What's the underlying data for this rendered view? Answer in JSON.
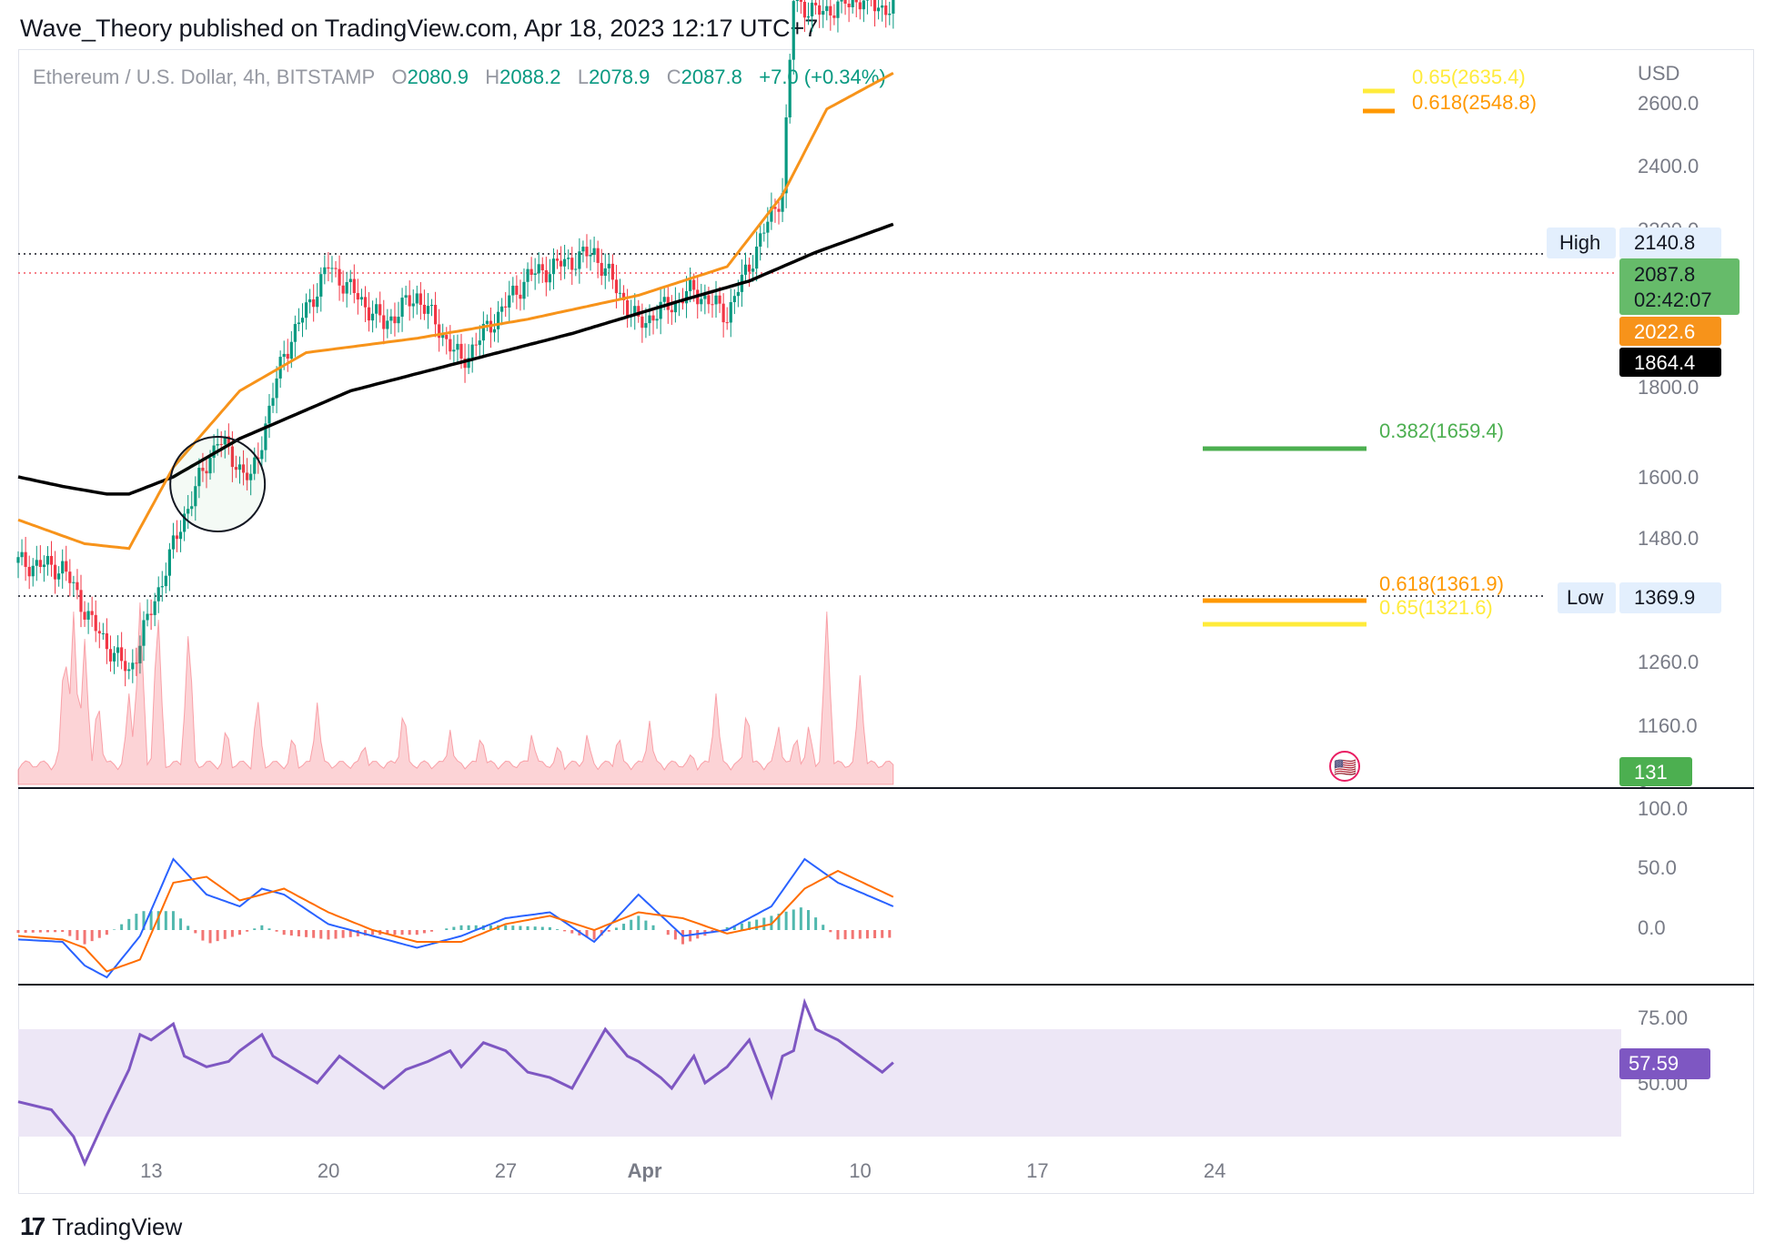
{
  "header": {
    "publisher_line": "Wave_Theory published on TradingView.com, Apr 18, 2023 12:17 UTC+7"
  },
  "legend": {
    "symbol": "Ethereum / U.S. Dollar, 4h, BITSTAMP",
    "open_label": "O",
    "open": "2080.9",
    "high_label": "H",
    "high": "2088.2",
    "low_label": "L",
    "low": "2078.9",
    "close_label": "C",
    "close": "2087.8",
    "change": "+7.0 (+0.34%)"
  },
  "footer": {
    "brand": "TradingView"
  },
  "colors": {
    "up": "#089981",
    "down": "#f23645",
    "ema_fast": "#f7931a",
    "ema_slow": "#000000",
    "fib_yellow": "#ffeb3b",
    "fib_orange": "#ff9800",
    "fib_green": "#4caf50",
    "macd": "#2962ff",
    "signal": "#ff6d00",
    "rsi": "#7e57c2",
    "rsi_band": "#ede7f6"
  },
  "chart_data": {
    "type": "candlestick",
    "price_axis_unit": "USD",
    "price_ticks": [
      "2600.0",
      "2400.0",
      "1800.0",
      "1600.0",
      "1480.0",
      "1260.0",
      "1160.0"
    ],
    "price_ticks_partially_hidden": [
      "2200.0",
      "0"
    ],
    "x_ticks": [
      "13",
      "20",
      "27",
      "Apr",
      "10",
      "17",
      "24"
    ],
    "price_labels": {
      "high_label": "High",
      "high_value": "2140.8",
      "low_label": "Low",
      "low_value": "1369.9",
      "last_price": "2087.8",
      "countdown": "02:42:07",
      "ema_fast_value": "2022.6",
      "ema_slow_value": "1864.4",
      "volume_value": "131"
    },
    "fib_levels": [
      {
        "label": "0.65(2635.4)",
        "ratio": 0.65,
        "price": 2635.4,
        "color": "#ffeb3b"
      },
      {
        "label": "0.618(2548.8)",
        "ratio": 0.618,
        "price": 2548.8,
        "color": "#ff9800"
      },
      {
        "label": "0.382(1659.4)",
        "ratio": 0.382,
        "price": 1659.4,
        "color": "#4caf50"
      },
      {
        "label": "0.618(1361.9)",
        "ratio": 0.618,
        "price": 1361.9,
        "color": "#ff9800"
      },
      {
        "label": "0.65(1321.6)",
        "ratio": 0.65,
        "price": 1321.6,
        "color": "#ffeb3b"
      }
    ],
    "price_anchor_days": [
      0,
      2,
      3.5,
      5,
      6,
      7.5,
      9,
      10.5,
      12,
      14,
      16.5,
      18,
      20,
      23,
      26,
      28,
      30.5,
      32,
      34.5,
      35,
      36,
      38,
      39.5
    ],
    "price_anchors": [
      1510,
      1505,
      1440,
      1395,
      1460,
      1560,
      1640,
      1595,
      1730,
      1820,
      1760,
      1790,
      1720,
      1810,
      1835,
      1760,
      1795,
      1770,
      1900,
      2100,
      2085,
      2100,
      2087.8
    ],
    "ema_fast_days": [
      0,
      3,
      5,
      7,
      10,
      13,
      18,
      23,
      28,
      32,
      34.5,
      36.5,
      39.5
    ],
    "ema_fast": [
      1555,
      1530,
      1525,
      1610,
      1690,
      1730,
      1745,
      1765,
      1790,
      1820,
      1895,
      1985,
      2022.6
    ],
    "ema_slow_days": [
      0,
      2,
      4,
      5,
      7,
      10,
      15,
      20,
      25,
      30,
      33,
      36,
      39.5
    ],
    "ema_slow": [
      1600,
      1590,
      1582,
      1582,
      1600,
      1640,
      1690,
      1720,
      1750,
      1785,
      1805,
      1835,
      1864.4
    ],
    "volume_peaks_days": [
      2.1,
      2.5,
      3.0,
      3.6,
      5.0,
      5.5,
      6.3,
      7.7,
      9.4,
      10.8,
      12.4,
      13.5,
      15.6,
      17.4,
      19.5,
      20.9,
      23.2,
      24.4,
      25.7,
      27.1,
      28.5,
      30.4,
      31.5,
      32.9,
      34.3,
      35.1,
      35.7,
      36.5,
      38.0
    ],
    "volume_peaks": [
      0.8,
      0.95,
      0.8,
      0.5,
      0.5,
      1.0,
      1.0,
      0.9,
      0.35,
      0.5,
      0.3,
      0.45,
      0.25,
      0.45,
      0.3,
      0.3,
      0.3,
      0.25,
      0.3,
      0.3,
      0.35,
      0.2,
      0.5,
      0.45,
      0.35,
      0.3,
      0.35,
      0.95,
      0.6
    ],
    "macd_ticks": [
      "100.0",
      "50.0",
      "0.0"
    ],
    "macd_days": [
      0,
      2,
      3,
      4,
      5.5,
      7,
      8.5,
      10,
      11,
      12,
      14,
      16,
      18,
      20,
      22,
      24,
      26,
      28,
      30,
      32,
      34,
      35.5,
      37,
      39.5
    ],
    "macd": [
      -8,
      -10,
      -30,
      -40,
      -5,
      60,
      30,
      20,
      35,
      30,
      5,
      -5,
      -15,
      -5,
      10,
      15,
      -10,
      30,
      -5,
      0,
      20,
      60,
      40,
      20
    ],
    "signal": [
      -5,
      -8,
      -15,
      -35,
      -25,
      40,
      45,
      25,
      30,
      35,
      15,
      0,
      -10,
      -10,
      5,
      12,
      0,
      15,
      10,
      -3,
      5,
      35,
      50,
      28
    ],
    "rsi_ticks": [
      "75.00",
      "50.00"
    ],
    "rsi_value": "57.59",
    "rsi_days": [
      0,
      1.5,
      2.5,
      3,
      4,
      5,
      5.5,
      6,
      7,
      7.5,
      8.5,
      9.5,
      10,
      11,
      11.5,
      12.5,
      13.5,
      14.5,
      15.5,
      16.5,
      17.5,
      18.5,
      19.5,
      20,
      21,
      22,
      23,
      24,
      25,
      26.5,
      27.5,
      28,
      29,
      29.5,
      30.5,
      31,
      32,
      33,
      34,
      34.5,
      35,
      35.5,
      36,
      37,
      38,
      39,
      39.5
    ],
    "rsi": [
      43,
      40,
      30,
      20,
      38,
      55,
      68,
      66,
      72,
      60,
      56,
      58,
      62,
      68,
      60,
      55,
      50,
      60,
      54,
      48,
      55,
      58,
      62,
      56,
      65,
      62,
      54,
      52,
      48,
      70,
      60,
      58,
      52,
      48,
      60,
      50,
      56,
      66,
      45,
      60,
      62,
      80,
      70,
      66,
      60,
      54,
      57.59
    ]
  }
}
